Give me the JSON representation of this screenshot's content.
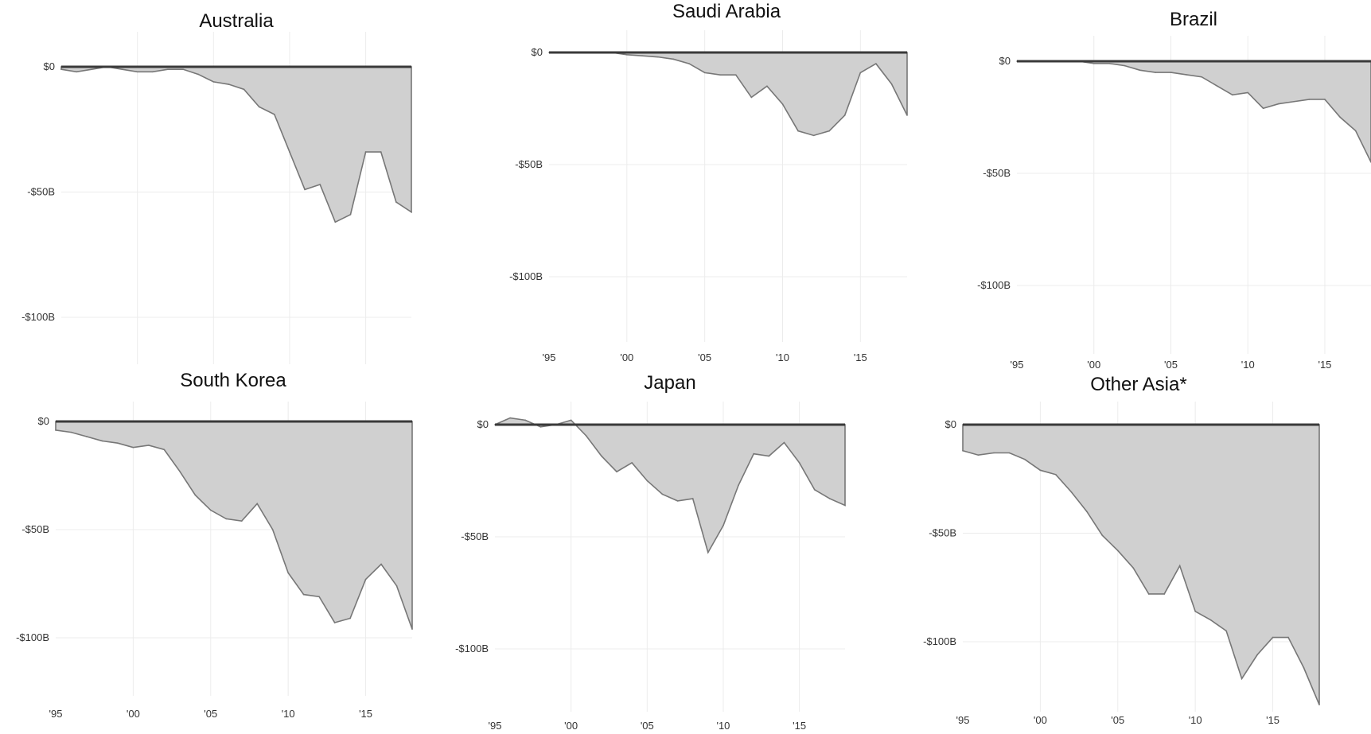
{
  "chart_data": [
    {
      "type": "area",
      "title": "Australia",
      "xlabel": "",
      "ylabel": "",
      "ylim": [
        -120,
        5
      ],
      "xlim": [
        1995,
        2018
      ],
      "grid": true,
      "y_ticks": [
        {
          "value": 0,
          "label": "$0"
        },
        {
          "value": -50,
          "label": "-$50B"
        },
        {
          "value": -100,
          "label": "-$100B"
        }
      ],
      "x_ticks": [],
      "x": [
        1995,
        1996,
        1997,
        1998,
        1999,
        2000,
        2001,
        2002,
        2003,
        2004,
        2005,
        2006,
        2007,
        2008,
        2009,
        2010,
        2011,
        2012,
        2013,
        2014,
        2015,
        2016,
        2017,
        2018
      ],
      "values": [
        -1,
        -2,
        -1,
        0,
        -1,
        -2,
        -2,
        -1,
        -1,
        -3,
        -6,
        -7,
        -9,
        -16,
        -19,
        -34,
        -49,
        -47,
        -62,
        -59,
        -34,
        -34,
        -54,
        -58
      ]
    },
    {
      "type": "area",
      "title": "Saudi Arabia",
      "xlabel": "",
      "ylabel": "",
      "ylim": [
        -120,
        5
      ],
      "xlim": [
        1995,
        2018
      ],
      "grid": true,
      "y_ticks": [
        {
          "value": 0,
          "label": "$0"
        },
        {
          "value": -50,
          "label": "-$50B"
        },
        {
          "value": -100,
          "label": "-$100B"
        }
      ],
      "x_ticks": [
        {
          "value": 1995,
          "label": "'95"
        },
        {
          "value": 2000,
          "label": "'00"
        },
        {
          "value": 2005,
          "label": "'05"
        },
        {
          "value": 2010,
          "label": "'10"
        },
        {
          "value": 2015,
          "label": "'15"
        }
      ],
      "x": [
        1995,
        1996,
        1997,
        1998,
        1999,
        2000,
        2001,
        2002,
        2003,
        2004,
        2005,
        2006,
        2007,
        2008,
        2009,
        2010,
        2011,
        2012,
        2013,
        2014,
        2015,
        2016,
        2017,
        2018
      ],
      "values": [
        0,
        0,
        0,
        0,
        0,
        -1,
        -1.5,
        -2,
        -3,
        -5,
        -9,
        -10,
        -10,
        -20,
        -15,
        -23,
        -35,
        -37,
        -35,
        -28,
        -9,
        -5,
        -14,
        -28
      ]
    },
    {
      "type": "area",
      "title": "Brazil",
      "xlabel": "",
      "ylabel": "",
      "ylim": [
        -120,
        5
      ],
      "xlim": [
        1995,
        2018
      ],
      "grid": true,
      "y_ticks": [
        {
          "value": 0,
          "label": "$0"
        },
        {
          "value": -50,
          "label": "-$50B"
        },
        {
          "value": -100,
          "label": "-$100B"
        }
      ],
      "x_ticks": [
        {
          "value": 1995,
          "label": "'95"
        },
        {
          "value": 2000,
          "label": "'00"
        },
        {
          "value": 2005,
          "label": "'05"
        },
        {
          "value": 2010,
          "label": "'10"
        },
        {
          "value": 2015,
          "label": "'15"
        }
      ],
      "x": [
        1995,
        1996,
        1997,
        1998,
        1999,
        2000,
        2001,
        2002,
        2003,
        2004,
        2005,
        2006,
        2007,
        2008,
        2009,
        2010,
        2011,
        2012,
        2013,
        2014,
        2015,
        2016,
        2017,
        2018
      ],
      "values": [
        0,
        0,
        0,
        0,
        0,
        -1,
        -1,
        -2,
        -4,
        -5,
        -5,
        -6,
        -7,
        -11,
        -15,
        -14,
        -21,
        -19,
        -18,
        -17,
        -17,
        -25,
        -31,
        -45
      ]
    },
    {
      "type": "area",
      "title": "South Korea",
      "xlabel": "",
      "ylabel": "",
      "ylim": [
        -120,
        5
      ],
      "xlim": [
        1995,
        2018
      ],
      "grid": true,
      "y_ticks": [
        {
          "value": 0,
          "label": "$0"
        },
        {
          "value": -50,
          "label": "-$50B"
        },
        {
          "value": -100,
          "label": "-$100B"
        }
      ],
      "x_ticks": [
        {
          "value": 1995,
          "label": "'95"
        },
        {
          "value": 2000,
          "label": "'00"
        },
        {
          "value": 2005,
          "label": "'05"
        },
        {
          "value": 2010,
          "label": "'10"
        },
        {
          "value": 2015,
          "label": "'15"
        }
      ],
      "x": [
        1995,
        1996,
        1997,
        1998,
        1999,
        2000,
        2001,
        2002,
        2003,
        2004,
        2005,
        2006,
        2007,
        2008,
        2009,
        2010,
        2011,
        2012,
        2013,
        2014,
        2015,
        2016,
        2017,
        2018
      ],
      "values": [
        -4,
        -5,
        -7,
        -9,
        -10,
        -12,
        -11,
        -13,
        -23,
        -34,
        -41,
        -45,
        -46,
        -38,
        -50,
        -70,
        -80,
        -81,
        -93,
        -91,
        -73,
        -66,
        -76,
        -96
      ]
    },
    {
      "type": "area",
      "title": "Japan",
      "xlabel": "",
      "ylabel": "",
      "ylim": [
        -120,
        5
      ],
      "xlim": [
        1995,
        2018
      ],
      "grid": true,
      "y_ticks": [
        {
          "value": 0,
          "label": "$0"
        },
        {
          "value": -50,
          "label": "-$50B"
        },
        {
          "value": -100,
          "label": "-$100B"
        }
      ],
      "x_ticks": [
        {
          "value": 1995,
          "label": "'95"
        },
        {
          "value": 2000,
          "label": "'00"
        },
        {
          "value": 2005,
          "label": "'05"
        },
        {
          "value": 2010,
          "label": "'10"
        },
        {
          "value": 2015,
          "label": "'15"
        }
      ],
      "x": [
        1995,
        1996,
        1997,
        1998,
        1999,
        2000,
        2001,
        2002,
        2003,
        2004,
        2005,
        2006,
        2007,
        2008,
        2009,
        2010,
        2011,
        2012,
        2013,
        2014,
        2015,
        2016,
        2017,
        2018
      ],
      "values": [
        0,
        3,
        2,
        -1,
        0,
        2,
        -5,
        -14,
        -21,
        -17,
        -25,
        -31,
        -34,
        -33,
        -57,
        -45,
        -27,
        -13,
        -14,
        -8,
        -17,
        -29,
        -33,
        -36
      ]
    },
    {
      "type": "area",
      "title": "Other Asia*",
      "xlabel": "",
      "ylabel": "",
      "ylim": [
        -130,
        5
      ],
      "xlim": [
        1995,
        2018
      ],
      "grid": true,
      "y_ticks": [
        {
          "value": 0,
          "label": "$0"
        },
        {
          "value": -50,
          "label": "-$50B"
        },
        {
          "value": -100,
          "label": "-$100B"
        }
      ],
      "x_ticks": [
        {
          "value": 1995,
          "label": "'95"
        },
        {
          "value": 2000,
          "label": "'00"
        },
        {
          "value": 2005,
          "label": "'05"
        },
        {
          "value": 2010,
          "label": "'10"
        },
        {
          "value": 2015,
          "label": "'15"
        }
      ],
      "x": [
        1995,
        1996,
        1997,
        1998,
        1999,
        2000,
        2001,
        2002,
        2003,
        2004,
        2005,
        2006,
        2007,
        2008,
        2009,
        2010,
        2011,
        2012,
        2013,
        2014,
        2015,
        2016,
        2017,
        2018
      ],
      "values": [
        -12,
        -14,
        -13,
        -13,
        -16,
        -21,
        -23,
        -31,
        -40,
        -51,
        -58,
        -66,
        -78,
        -78,
        -65,
        -86,
        -90,
        -95,
        -117,
        -106,
        -98,
        -98,
        -112,
        -129
      ]
    }
  ]
}
